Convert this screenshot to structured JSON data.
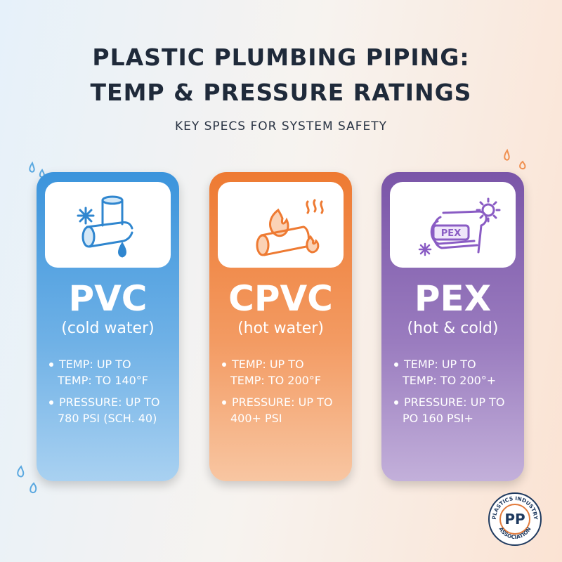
{
  "header": {
    "title_line1": "PLASTIC PLUMBING PIPING:",
    "title_line2": "TEMP & PRESSURE RATINGS",
    "subtitle": "KEY SPECS FOR SYSTEM SAFETY"
  },
  "cards": [
    {
      "name": "PVC",
      "sub": "(cold water)",
      "b1a": "TEMP: UP TO",
      "b1b": "TEMP: TO 140°F",
      "b2a": "PRESSURE: UP TO",
      "b2b": "780 PSI (SCH. 40)",
      "icon": "pipe-snowflake-icon",
      "color": "#3b94dc"
    },
    {
      "name": "CPVC",
      "sub": "(hot water)",
      "b1a": "TEMP: UP TO",
      "b1b": "TEMP: TO 200°F",
      "b2a": "PRESSURE: UP TO",
      "b2b": "400+ PSI",
      "icon": "pipe-flame-icon",
      "color": "#ee7a32"
    },
    {
      "name": "PEX",
      "sub": "(hot & cold)",
      "b1a": "TEMP: UP TO",
      "b1b": "TEMP: TO 200°+",
      "b2a": "PRESSURE: UP TO",
      "b2b": "PO 160 PSI+",
      "icon": "pex-coil-icon",
      "icon_label": "PEX",
      "color": "#7a55a8"
    }
  ],
  "badge": {
    "text_top": "PLASTICS INDUSTRY",
    "text_bottom": "ASSOCIATION",
    "mark": "PP"
  }
}
